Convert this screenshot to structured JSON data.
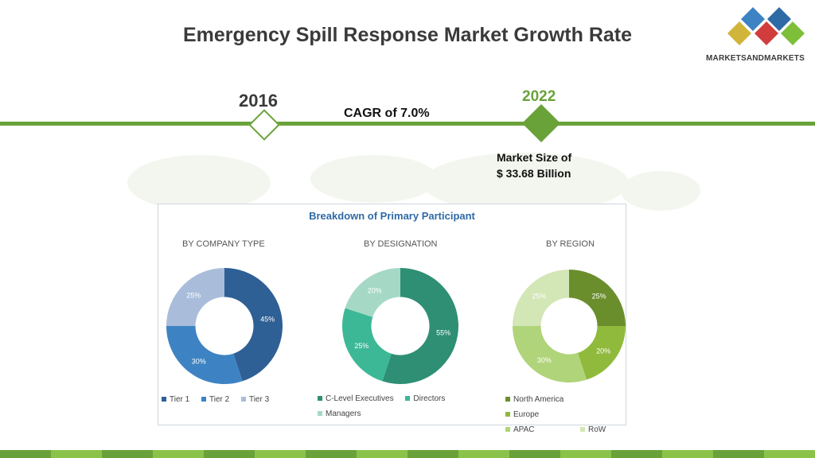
{
  "title": "Emergency Spill Response Market Growth Rate",
  "logo_text": "MARKETSANDMARKETS",
  "timeline": {
    "start_year": "2016",
    "end_year": "2022",
    "cagr": "CAGR of 7.0%",
    "market_size_line1": "Market Size of",
    "market_size_line2": "$ 33.68 Billion"
  },
  "panel_title": "Breakdown of Primary Participant",
  "colors": {
    "accent_green": "#6aa23a",
    "title_blue": "#2f6aa6"
  },
  "chart_data": [
    {
      "type": "pie",
      "title": "BY COMPANY TYPE",
      "categories": [
        "Tier 1",
        "Tier 2",
        "Tier 3"
      ],
      "values": [
        45,
        30,
        25
      ],
      "labels": [
        "45%",
        "30%",
        "25%"
      ],
      "colors": [
        "#2e5f95",
        "#3d83c4",
        "#a9bddb"
      ],
      "legend": [
        "Tier 1",
        "Tier 2",
        "Tier 3"
      ]
    },
    {
      "type": "pie",
      "title": "BY DESIGNATION",
      "categories": [
        "C-Level Executives",
        "Directors",
        "Managers"
      ],
      "values": [
        55,
        25,
        20
      ],
      "labels": [
        "55%",
        "25%",
        "20%"
      ],
      "colors": [
        "#2e8f75",
        "#3cb897",
        "#a6d8c6"
      ],
      "legend": [
        "C-Level Executives",
        "Directors",
        "Managers"
      ]
    },
    {
      "type": "pie",
      "title": "BY REGION",
      "categories": [
        "North America",
        "Europe",
        "APAC",
        "RoW"
      ],
      "values": [
        25,
        20,
        30,
        25
      ],
      "labels": [
        "25%",
        "20%",
        "30%",
        "25%"
      ],
      "colors": [
        "#6b8e2d",
        "#8fba3c",
        "#b0d47a",
        "#d3e6b5"
      ],
      "legend": [
        "North America",
        "Europe",
        "APAC",
        "RoW"
      ]
    }
  ]
}
